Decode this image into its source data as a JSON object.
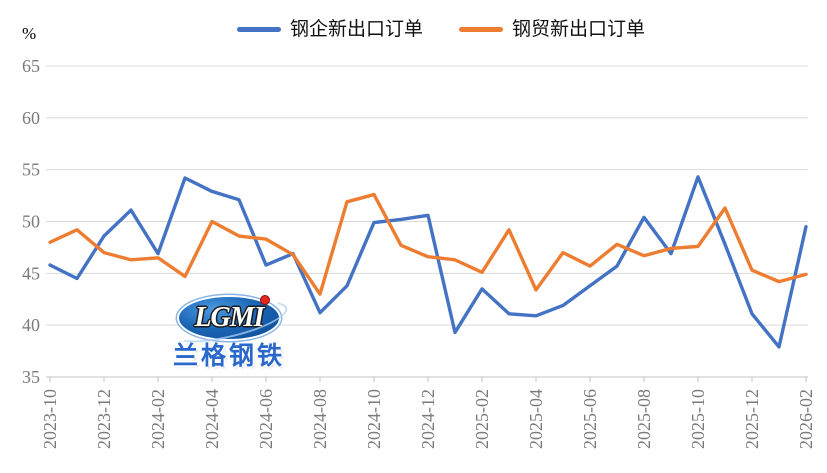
{
  "page": {
    "background": "#ffffff"
  },
  "chart_data": {
    "type": "line",
    "title": "",
    "y_unit_label": "%",
    "ylim": [
      35,
      65
    ],
    "y_ticks": [
      35,
      40,
      45,
      50,
      55,
      60,
      65
    ],
    "grid": true,
    "legend_position": "top",
    "x_label_every": 2,
    "x_labels_rotated_deg": 90,
    "categories": [
      "2023-10",
      "2023-11",
      "2023-12",
      "2024-01",
      "2024-02",
      "2024-03",
      "2024-04",
      "2024-05",
      "2024-06",
      "2024-07",
      "2024-08",
      "2024-09",
      "2024-10",
      "2024-11",
      "2024-12",
      "2025-01",
      "2025-02",
      "2025-03",
      "2025-04",
      "2025-05",
      "2025-06",
      "2025-07",
      "2025-08",
      "2025-09",
      "2025-10",
      "2025-11",
      "2025-12",
      "2026-01",
      "2026-02"
    ],
    "series": [
      {
        "name": "钢企新出口订单",
        "color": "#4472C4",
        "values": [
          45.8,
          44.5,
          48.6,
          51.1,
          46.9,
          54.2,
          52.9,
          52.1,
          45.8,
          46.9,
          41.2,
          43.8,
          49.9,
          50.2,
          50.6,
          39.3,
          43.5,
          41.1,
          40.9,
          41.9,
          43.8,
          45.7,
          50.4,
          46.9,
          54.3,
          47.8,
          41.1,
          37.9,
          49.5
        ]
      },
      {
        "name": "钢贸新出口订单",
        "color": "#ED7D31",
        "values": [
          48.0,
          49.2,
          47.0,
          46.3,
          46.5,
          44.7,
          50.0,
          48.6,
          48.3,
          46.8,
          43.0,
          51.9,
          52.6,
          47.7,
          46.6,
          46.3,
          45.1,
          49.2,
          43.4,
          47.0,
          45.7,
          47.8,
          46.7,
          47.4,
          47.6,
          51.3,
          45.3,
          44.2,
          44.9
        ]
      }
    ],
    "colors": {
      "gridline": "#d9d9d9",
      "axis_line": "#c6c6c6",
      "axis_label": "#7a7a7a",
      "legend_text": "#111111"
    }
  },
  "watermark": {
    "logo_text": "LGMI",
    "caption": "兰格钢铁"
  }
}
